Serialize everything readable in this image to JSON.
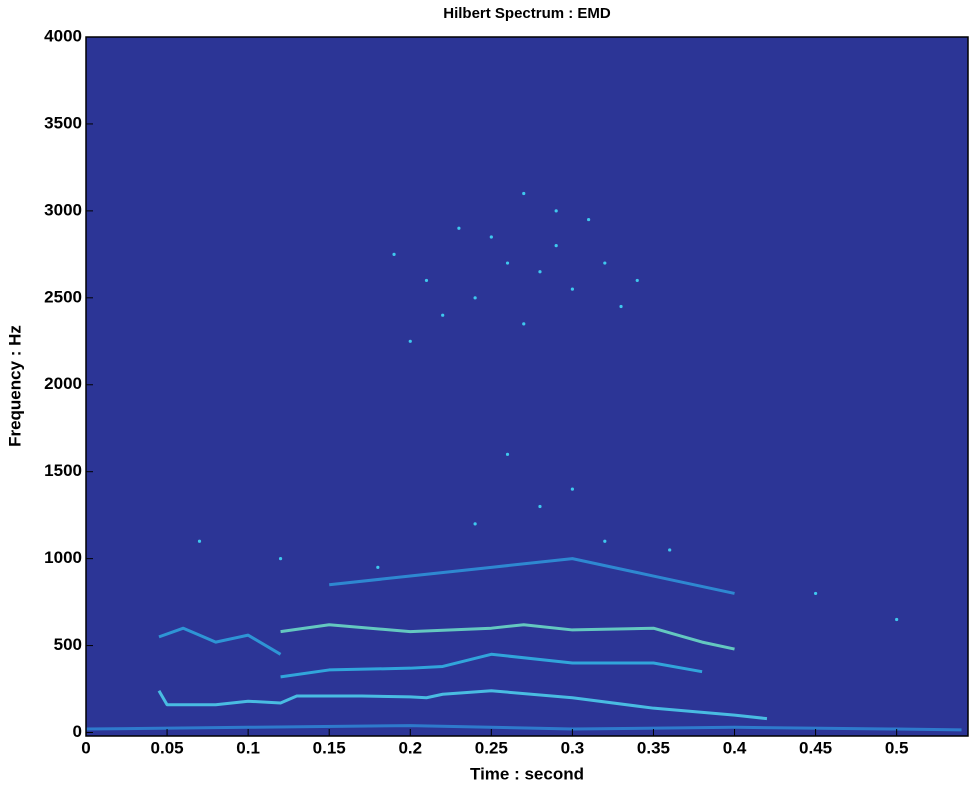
{
  "chart_data": {
    "type": "spectrum",
    "title": "Hilbert Spectrum :  EMD",
    "x_label": "Time : second",
    "y_label": "Frequency : Hz",
    "background": "#2c3596",
    "xlim": [
      0,
      0.544
    ],
    "ylim": [
      -20,
      4000
    ],
    "xticks": [
      0,
      0.05,
      0.1,
      0.15,
      0.2,
      0.25,
      0.3,
      0.35,
      0.4,
      0.45,
      0.5
    ],
    "yticks": [
      0,
      500,
      1000,
      1500,
      2000,
      2500,
      3000,
      3500,
      4000
    ],
    "ridges": [
      {
        "color": "#2f86d6",
        "x": [
          0,
          0.1,
          0.2,
          0.3,
          0.4,
          0.5,
          0.54
        ],
        "values": [
          20,
          30,
          40,
          20,
          30,
          20,
          15
        ]
      },
      {
        "color": "#4fd4f0",
        "x": [
          0.045,
          0.05,
          0.08,
          0.1,
          0.12,
          0.13,
          0.17,
          0.2,
          0.21,
          0.22,
          0.25,
          0.3,
          0.35,
          0.4,
          0.42
        ],
        "values": [
          240,
          160,
          160,
          180,
          170,
          210,
          210,
          205,
          200,
          220,
          240,
          200,
          140,
          100,
          80
        ]
      },
      {
        "color": "#33b8e8",
        "x": [
          0.12,
          0.15,
          0.2,
          0.22,
          0.25,
          0.3,
          0.35,
          0.38
        ],
        "values": [
          320,
          360,
          370,
          380,
          450,
          400,
          400,
          350
        ]
      },
      {
        "color": "#6fe2c8",
        "x": [
          0.12,
          0.15,
          0.2,
          0.25,
          0.27,
          0.3,
          0.35,
          0.38,
          0.4
        ],
        "values": [
          580,
          620,
          580,
          600,
          620,
          590,
          600,
          520,
          480
        ]
      },
      {
        "color": "#2fa6e0",
        "x": [
          0.045,
          0.06,
          0.08,
          0.1,
          0.12
        ],
        "values": [
          550,
          600,
          520,
          560,
          450
        ]
      },
      {
        "color": "#2f96dc",
        "x": [
          0.15,
          0.2,
          0.25,
          0.3,
          0.35,
          0.4
        ],
        "values": [
          850,
          900,
          950,
          1000,
          900,
          800
        ]
      }
    ],
    "dots": {
      "color": "#3fc8ee",
      "x": [
        0.19,
        0.21,
        0.23,
        0.24,
        0.26,
        0.27,
        0.28,
        0.29,
        0.3,
        0.31,
        0.32,
        0.33,
        0.22,
        0.25,
        0.27,
        0.29,
        0.34,
        0.2,
        0.26,
        0.3,
        0.24,
        0.28,
        0.32,
        0.36,
        0.18,
        0.12,
        0.07,
        0.45,
        0.5
      ],
      "values": [
        2750,
        2600,
        2900,
        2500,
        2700,
        3100,
        2650,
        2800,
        2550,
        2950,
        2700,
        2450,
        2400,
        2850,
        2350,
        3000,
        2600,
        2250,
        1600,
        1400,
        1200,
        1300,
        1100,
        1050,
        950,
        1000,
        1100,
        800,
        650
      ]
    }
  }
}
